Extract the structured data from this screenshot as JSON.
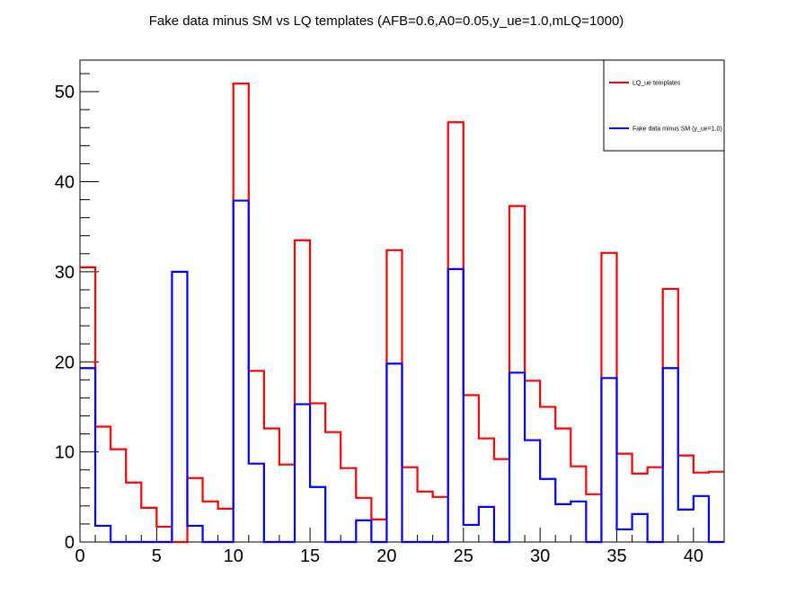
{
  "chart_data": {
    "type": "line",
    "step": true,
    "title": "Fake data minus SM vs LQ templates (AFB=0.6,A0=0.05,y_ue=1.0,mLQ=1000)",
    "xlim": [
      0,
      42
    ],
    "ylim": [
      0,
      53.5
    ],
    "x_ticks": [
      0,
      5,
      10,
      15,
      20,
      25,
      30,
      35,
      40
    ],
    "y_ticks": [
      0,
      10,
      20,
      30,
      40,
      50
    ],
    "x_minor_step": 1,
    "y_minor_step": 2,
    "bins": [
      0,
      1,
      2,
      3,
      4,
      5,
      6,
      7,
      8,
      9,
      10,
      11,
      12,
      13,
      14,
      15,
      16,
      17,
      18,
      19,
      20,
      21,
      22,
      23,
      24,
      25,
      26,
      27,
      28,
      29,
      30,
      31,
      32,
      33,
      34,
      35,
      36,
      37,
      38,
      39,
      40,
      41
    ],
    "legend_position": "top-right",
    "series": [
      {
        "name": "LQ_ue templates",
        "color": "#ff0000",
        "values": [
          30.5,
          12.8,
          10.3,
          6.6,
          3.8,
          1.7,
          0.0,
          7.1,
          4.5,
          3.7,
          50.9,
          19.0,
          12.6,
          8.6,
          33.5,
          15.4,
          12.2,
          8.2,
          4.9,
          2.5,
          32.4,
          8.3,
          5.6,
          5.0,
          46.6,
          16.3,
          11.5,
          9.2,
          37.3,
          17.9,
          15.0,
          12.6,
          8.4,
          5.3,
          32.1,
          9.8,
          7.6,
          8.3,
          28.1,
          9.6,
          7.7,
          7.8
        ]
      },
      {
        "name": "Fake data minus SM (y_ue=1.0)",
        "color": "#0000ff",
        "values": [
          19.3,
          1.8,
          0.0,
          0.0,
          0.0,
          0.0,
          30.0,
          1.8,
          0.0,
          0.0,
          37.9,
          8.7,
          0.0,
          0.0,
          15.3,
          6.1,
          0.0,
          0.0,
          2.4,
          0.0,
          19.8,
          0.0,
          0.0,
          0.0,
          30.3,
          1.9,
          3.9,
          0.0,
          18.8,
          11.3,
          7.0,
          4.2,
          4.5,
          0.0,
          18.2,
          1.4,
          3.1,
          0.0,
          19.3,
          3.6,
          5.1,
          0.0
        ]
      }
    ]
  }
}
